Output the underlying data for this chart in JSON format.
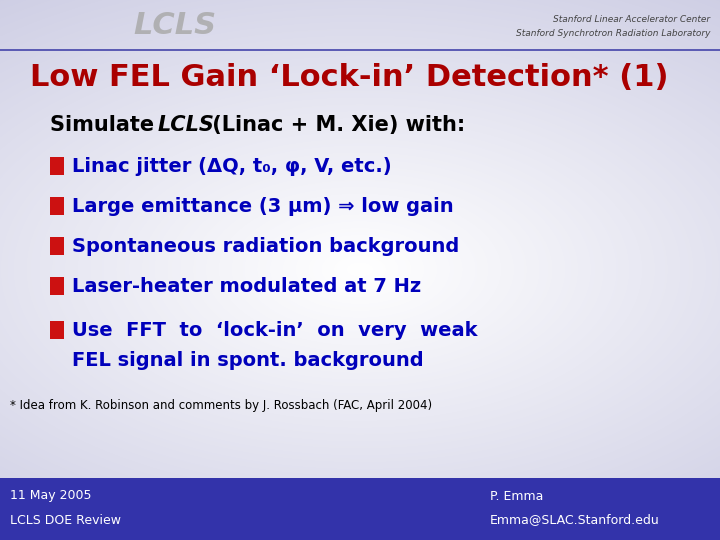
{
  "bg_color_center": "#ffffff",
  "bg_color_edge": "#c8c8e8",
  "footer_color": "#3333aa",
  "title": "Low FEL Gain ‘Lock-in’ Detection* (1)",
  "title_color": "#aa0000",
  "bullet_color": "#cc1111",
  "bullet_text_color": "#0000bb",
  "bullets": [
    "Linac jitter (ΔQ, t₀, φ, V, etc.)",
    "Large emittance (3 μm) ⇒ low gain",
    "Spontaneous radiation background",
    "Laser-heater modulated at 7 Hz",
    "Use  FFT  to  ‘lock-in’  on  very  weak",
    "FEL signal in spont. background"
  ],
  "footnote": "* Idea from K. Robinson and comments by J. Rossbach (FAC, April 2004)",
  "footer_left_line1": "11 May 2005",
  "footer_left_line2": "LCLS DOE Review",
  "footer_right_line1": "P. Emma",
  "footer_right_line2": "Emma@SLAC.Stanford.edu",
  "header_right_line1": "Stanford Linear Accelerator Center",
  "header_right_line2": "Stanford Synchrotron Radiation Laboratory"
}
